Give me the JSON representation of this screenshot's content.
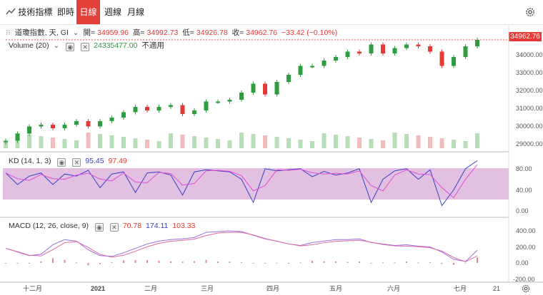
{
  "toolbar": {
    "indicator_label": "技術指標",
    "tabs": [
      {
        "label": "即時"
      },
      {
        "label": "日線"
      },
      {
        "label": "週線"
      },
      {
        "label": "月線"
      }
    ],
    "active_tab": "日線"
  },
  "main": {
    "symbol": "道瓊指數, 天, GI",
    "open_label": "開=",
    "open": "34959.96",
    "high_label": "高=",
    "high": "34992.73",
    "low_label": "低=",
    "low": "34926.78",
    "close_label": "收=",
    "close": "34962.76",
    "change": "−33.42 (−0.10%)",
    "volume_label": "Volume (20)",
    "volume_value": "24335477.00",
    "volume_na": "不適用",
    "last_price_tag": "34962.76",
    "y_ticks": [
      "34000.00",
      "33000.00",
      "32000.00",
      "31000.00",
      "30000.00",
      "29000.00"
    ]
  },
  "kd": {
    "label": "KD (14, 1, 3)",
    "k_value": "95.45",
    "d_value": "97.49",
    "y_ticks": [
      "80.00",
      "40.00",
      "0.00"
    ]
  },
  "macd": {
    "label": "MACD (12, 26, close, 9)",
    "v1": "70.78",
    "v2": "174.11",
    "v3": "103.33",
    "y_ticks": [
      "400.00",
      "200.00",
      "0.00",
      "-200.00"
    ]
  },
  "x_axis": {
    "labels": [
      "十二月",
      "2021",
      "二月",
      "三月",
      "四月",
      "五月",
      "六月",
      "七月",
      "21"
    ]
  },
  "colors": {
    "up": "#2e9c41",
    "down": "#e53935",
    "k_line": "#3a40c4",
    "d_line": "#e04fd6",
    "kd_band": "#dcb5dc"
  },
  "chart_data": {
    "type": "candlestick",
    "series": [
      {
        "name": "道瓊指數",
        "close_values": [
          29300,
          29700,
          30100,
          30200,
          30000,
          30200,
          30400,
          30100,
          30400,
          30600,
          30900,
          31200,
          31000,
          31200,
          31300,
          30800,
          31000,
          31500,
          31500,
          31600,
          32000,
          32500,
          31900,
          32600,
          33000,
          33500,
          33500,
          33800,
          34000,
          34300,
          34200,
          34700,
          34200,
          34500,
          34700,
          34600,
          34300,
          33500,
          34000,
          34600,
          34962.76
        ]
      },
      {
        "name": "KD",
        "values_k": [
          72,
          50,
          66,
          72,
          50,
          70,
          66,
          77,
          44,
          70,
          74,
          35,
          72,
          74,
          68,
          30,
          74,
          78,
          76,
          74,
          60,
          16,
          80,
          76,
          78,
          80,
          65,
          75,
          68,
          72,
          80,
          16,
          60,
          76,
          80,
          60,
          78,
          10,
          40,
          80,
          95.45
        ]
      },
      {
        "name": "MACD",
        "values": [
          200,
          150,
          100,
          120,
          250,
          320,
          300,
          180,
          100,
          90,
          140,
          200,
          260,
          300,
          320,
          330,
          350,
          420,
          430,
          440,
          430,
          380,
          330,
          300,
          260,
          240,
          280,
          300,
          320,
          320,
          330,
          280,
          260,
          240,
          250,
          230,
          220,
          150,
          50,
          20,
          174.11
        ]
      }
    ],
    "ylim_price": [
      29000,
      35000
    ],
    "ylim_kd": [
      0,
      100
    ],
    "ylim_macd": [
      -200,
      450
    ]
  }
}
